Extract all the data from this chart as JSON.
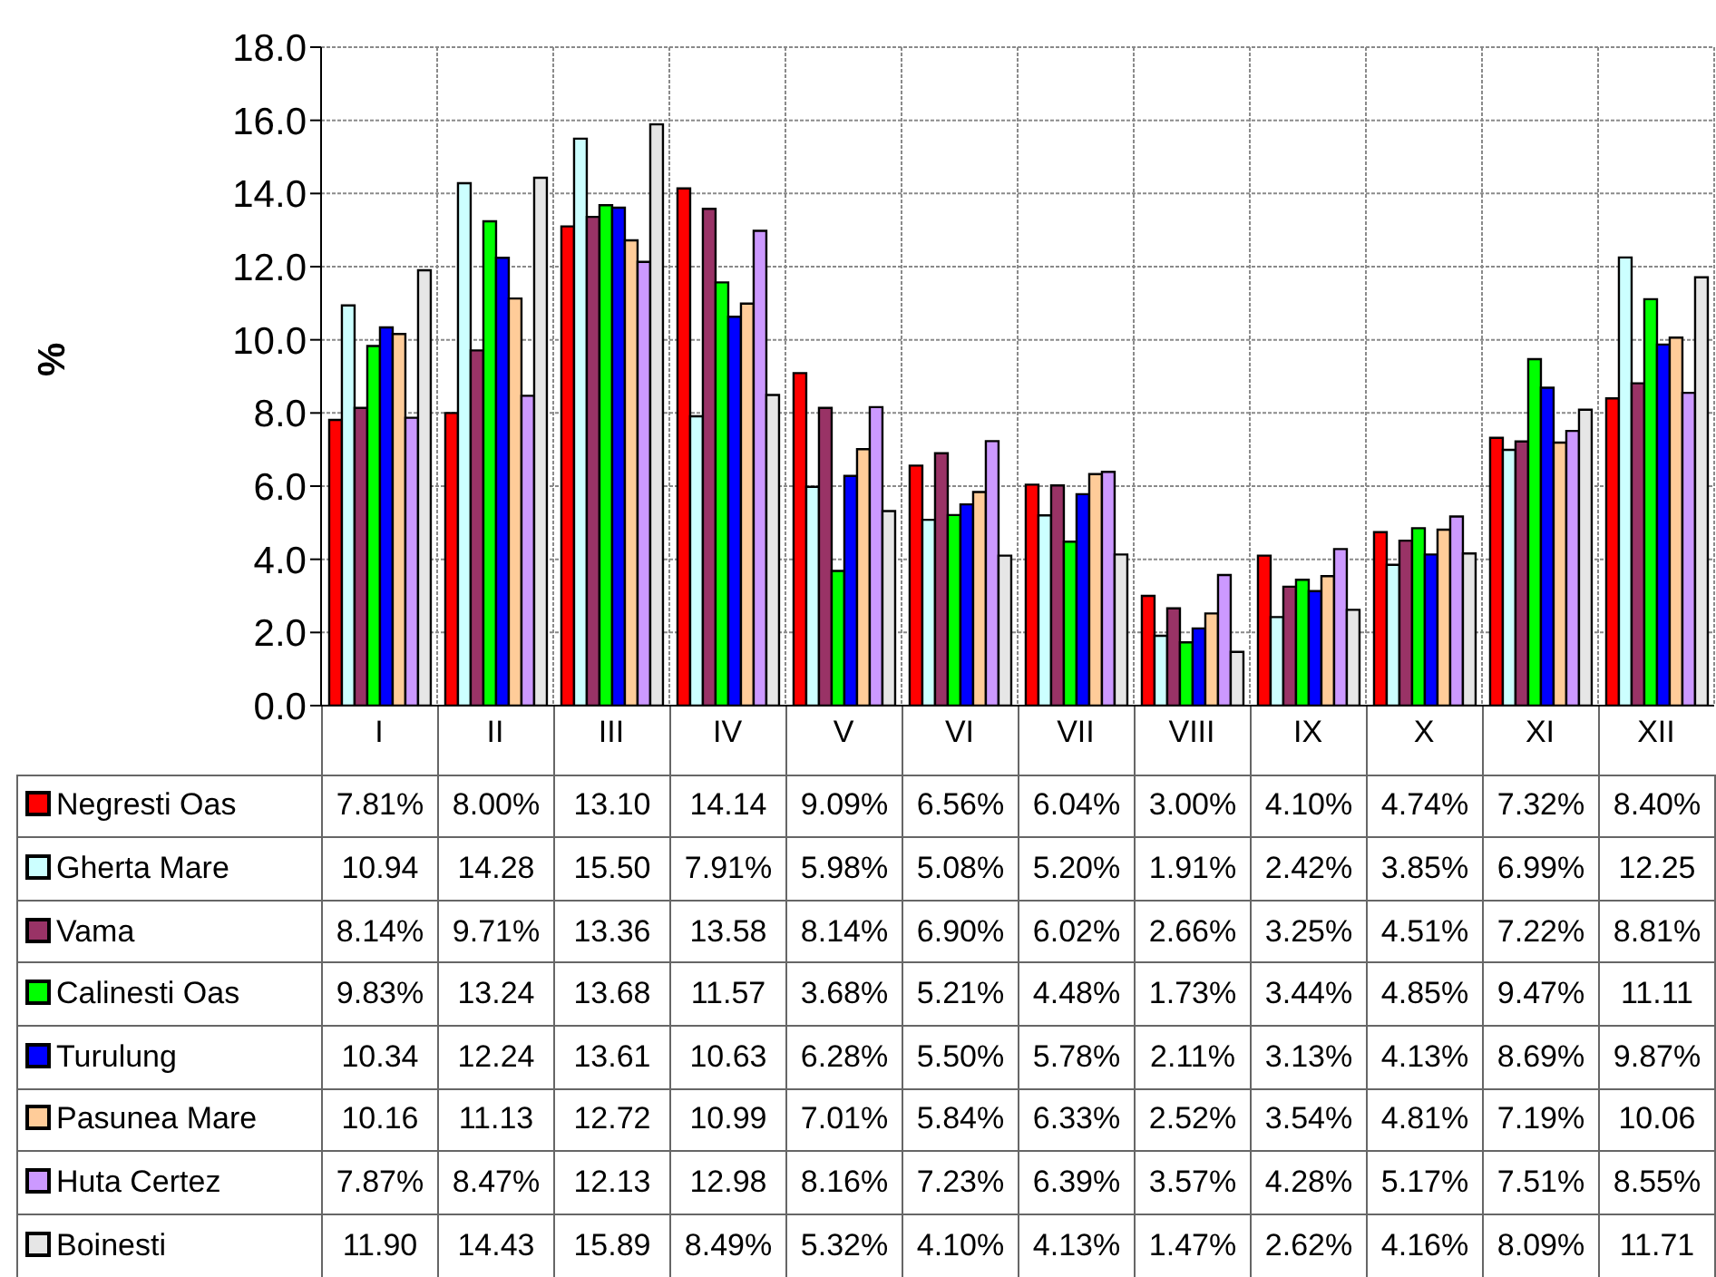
{
  "chart_data": {
    "type": "bar",
    "ylabel": "%",
    "categories": [
      "I",
      "II",
      "III",
      "IV",
      "V",
      "VI",
      "VII",
      "VIII",
      "IX",
      "X",
      "XI",
      "XII"
    ],
    "ylim": [
      0,
      18
    ],
    "yticks": [
      {
        "value": 0,
        "label": "0.0"
      },
      {
        "value": 2,
        "label": "2.0"
      },
      {
        "value": 4,
        "label": "4.0"
      },
      {
        "value": 6,
        "label": "6.0"
      },
      {
        "value": 8,
        "label": "8.0"
      },
      {
        "value": 10,
        "label": "10.0"
      },
      {
        "value": 12,
        "label": "12.0"
      },
      {
        "value": 14,
        "label": "14.0"
      },
      {
        "value": 16,
        "label": "16.0"
      },
      {
        "value": 18,
        "label": "18.0"
      }
    ],
    "grid": true,
    "legend": "bottom left",
    "series": [
      {
        "name": "Negresti Oas",
        "color": "#ff0000",
        "values": [
          7.81,
          8.0,
          13.1,
          14.14,
          9.09,
          6.56,
          6.04,
          3.0,
          4.1,
          4.74,
          7.32,
          8.4
        ],
        "value_labels": [
          "7.81%",
          "8.00%",
          "13.10",
          "14.14",
          "9.09%",
          "6.56%",
          "6.04%",
          "3.00%",
          "4.10%",
          "4.74%",
          "7.32%",
          "8.40%"
        ]
      },
      {
        "name": "Gherta Mare",
        "color": "#ccffff",
        "values": [
          10.94,
          14.28,
          15.5,
          7.91,
          5.98,
          5.08,
          5.2,
          1.91,
          2.42,
          3.85,
          6.99,
          12.25
        ],
        "value_labels": [
          "10.94",
          "14.28",
          "15.50",
          "7.91%",
          "5.98%",
          "5.08%",
          "5.20%",
          "1.91%",
          "2.42%",
          "3.85%",
          "6.99%",
          "12.25"
        ]
      },
      {
        "name": "Vama",
        "color": "#993366",
        "values": [
          8.14,
          9.71,
          13.36,
          13.58,
          8.14,
          6.9,
          6.02,
          2.66,
          3.25,
          4.51,
          7.22,
          8.81
        ],
        "value_labels": [
          "8.14%",
          "9.71%",
          "13.36",
          "13.58",
          "8.14%",
          "6.90%",
          "6.02%",
          "2.66%",
          "3.25%",
          "4.51%",
          "7.22%",
          "8.81%"
        ]
      },
      {
        "name": "Calinesti Oas",
        "color": "#00ff00",
        "values": [
          9.83,
          13.24,
          13.68,
          11.57,
          3.68,
          5.21,
          4.48,
          1.73,
          3.44,
          4.85,
          9.47,
          11.11
        ],
        "value_labels": [
          "9.83%",
          "13.24",
          "13.68",
          "11.57",
          "3.68%",
          "5.21%",
          "4.48%",
          "1.73%",
          "3.44%",
          "4.85%",
          "9.47%",
          "11.11"
        ]
      },
      {
        "name": "Turulung",
        "color": "#0000ff",
        "values": [
          10.34,
          12.24,
          13.61,
          10.63,
          6.28,
          5.5,
          5.78,
          2.11,
          3.13,
          4.13,
          8.69,
          9.87
        ],
        "value_labels": [
          "10.34",
          "12.24",
          "13.61",
          "10.63",
          "6.28%",
          "5.50%",
          "5.78%",
          "2.11%",
          "3.13%",
          "4.13%",
          "8.69%",
          "9.87%"
        ]
      },
      {
        "name": "Pasunea Mare",
        "color": "#ffcc99",
        "values": [
          10.16,
          11.13,
          12.72,
          10.99,
          7.01,
          5.84,
          6.33,
          2.52,
          3.54,
          4.81,
          7.19,
          10.06
        ],
        "value_labels": [
          "10.16",
          "11.13",
          "12.72",
          "10.99",
          "7.01%",
          "5.84%",
          "6.33%",
          "2.52%",
          "3.54%",
          "4.81%",
          "7.19%",
          "10.06"
        ]
      },
      {
        "name": "Huta Certez",
        "color": "#cc99ff",
        "values": [
          7.87,
          8.47,
          12.13,
          12.98,
          8.16,
          7.23,
          6.39,
          3.57,
          4.28,
          5.17,
          7.51,
          8.55
        ],
        "value_labels": [
          "7.87%",
          "8.47%",
          "12.13",
          "12.98",
          "8.16%",
          "7.23%",
          "6.39%",
          "3.57%",
          "4.28%",
          "5.17%",
          "7.51%",
          "8.55%"
        ]
      },
      {
        "name": "Boinesti",
        "color": "#e6e6e6",
        "values": [
          11.9,
          14.43,
          15.89,
          8.49,
          5.32,
          4.1,
          4.13,
          1.47,
          2.62,
          4.16,
          8.09,
          11.71
        ],
        "value_labels": [
          "11.90",
          "14.43",
          "15.89",
          "8.49%",
          "5.32%",
          "4.10%",
          "4.13%",
          "1.47%",
          "2.62%",
          "4.16%",
          "8.09%",
          "11.71"
        ]
      }
    ]
  }
}
